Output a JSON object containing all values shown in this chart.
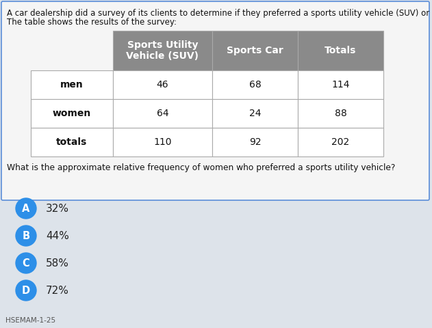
{
  "title_line1": "A car dealership did a survey of its clients to determine if they preferred a sports utility vehicle (SUV) or sports car.",
  "title_line2": "The table shows the results of the survey:",
  "col_headers": [
    "Sports Utility\nVehicle (SUV)",
    "Sports Car",
    "Totals"
  ],
  "row_labels": [
    "men",
    "women",
    "totals"
  ],
  "table_data": [
    [
      46,
      68,
      114
    ],
    [
      64,
      24,
      88
    ],
    [
      110,
      92,
      202
    ]
  ],
  "question": "What is the approximate relative frequency of women who preferred a sports utility vehicle?",
  "options": [
    "A",
    "B",
    "C",
    "D"
  ],
  "option_texts": [
    "32%",
    "44%",
    "58%",
    "72%"
  ],
  "footer": "HSEMAM-1-25",
  "header_bg": "#8a8a8a",
  "header_text_color": "#ffffff",
  "cell_bg": "#ffffff",
  "border_color": "#aaaaaa",
  "option_circle_color": "#2d8fe8",
  "bg_color": "#dde3ea",
  "box_bg": "#f5f5f5",
  "box_border_color": "#5b8dd9",
  "title_fontsize": 8.5,
  "question_fontsize": 8.8,
  "table_fontsize": 10,
  "option_fontsize": 11,
  "footer_fontsize": 7.5
}
